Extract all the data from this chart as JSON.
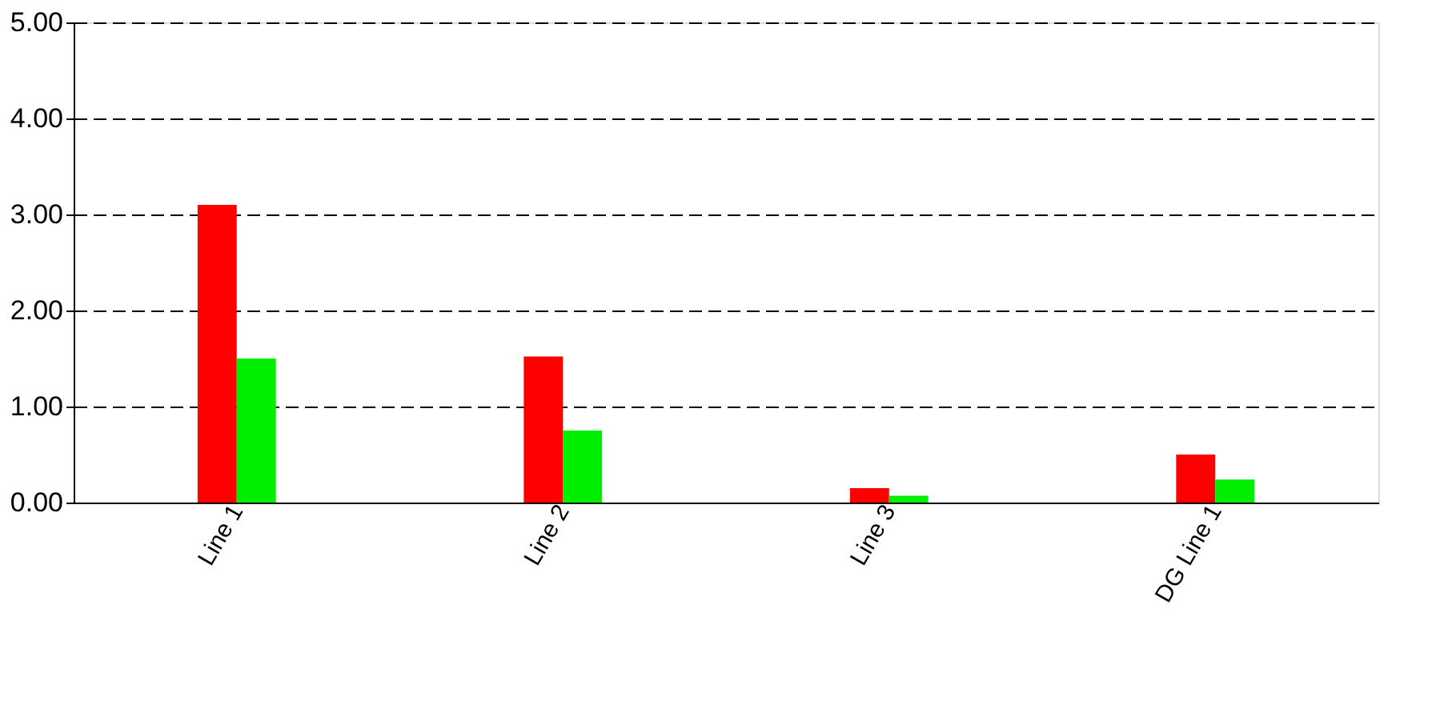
{
  "chart_data": {
    "type": "bar",
    "categories": [
      "Line 1",
      "Line 2",
      "Line 3",
      "DG Line 1"
    ],
    "series": [
      {
        "color": "#ff0000",
        "values": [
          3.1,
          1.52,
          0.15,
          0.5
        ]
      },
      {
        "color": "#00ee00",
        "values": [
          1.5,
          0.75,
          0.07,
          0.24
        ]
      }
    ],
    "ylim": [
      0,
      5
    ],
    "yticks": [
      {
        "value": 0,
        "label": "0.00"
      },
      {
        "value": 1,
        "label": "1.00"
      },
      {
        "value": 2,
        "label": "2.00"
      },
      {
        "value": 3,
        "label": "3.00"
      },
      {
        "value": 4,
        "label": "4.00"
      },
      {
        "value": 5,
        "label": "5.00"
      }
    ],
    "grid": "y",
    "legend": false
  }
}
